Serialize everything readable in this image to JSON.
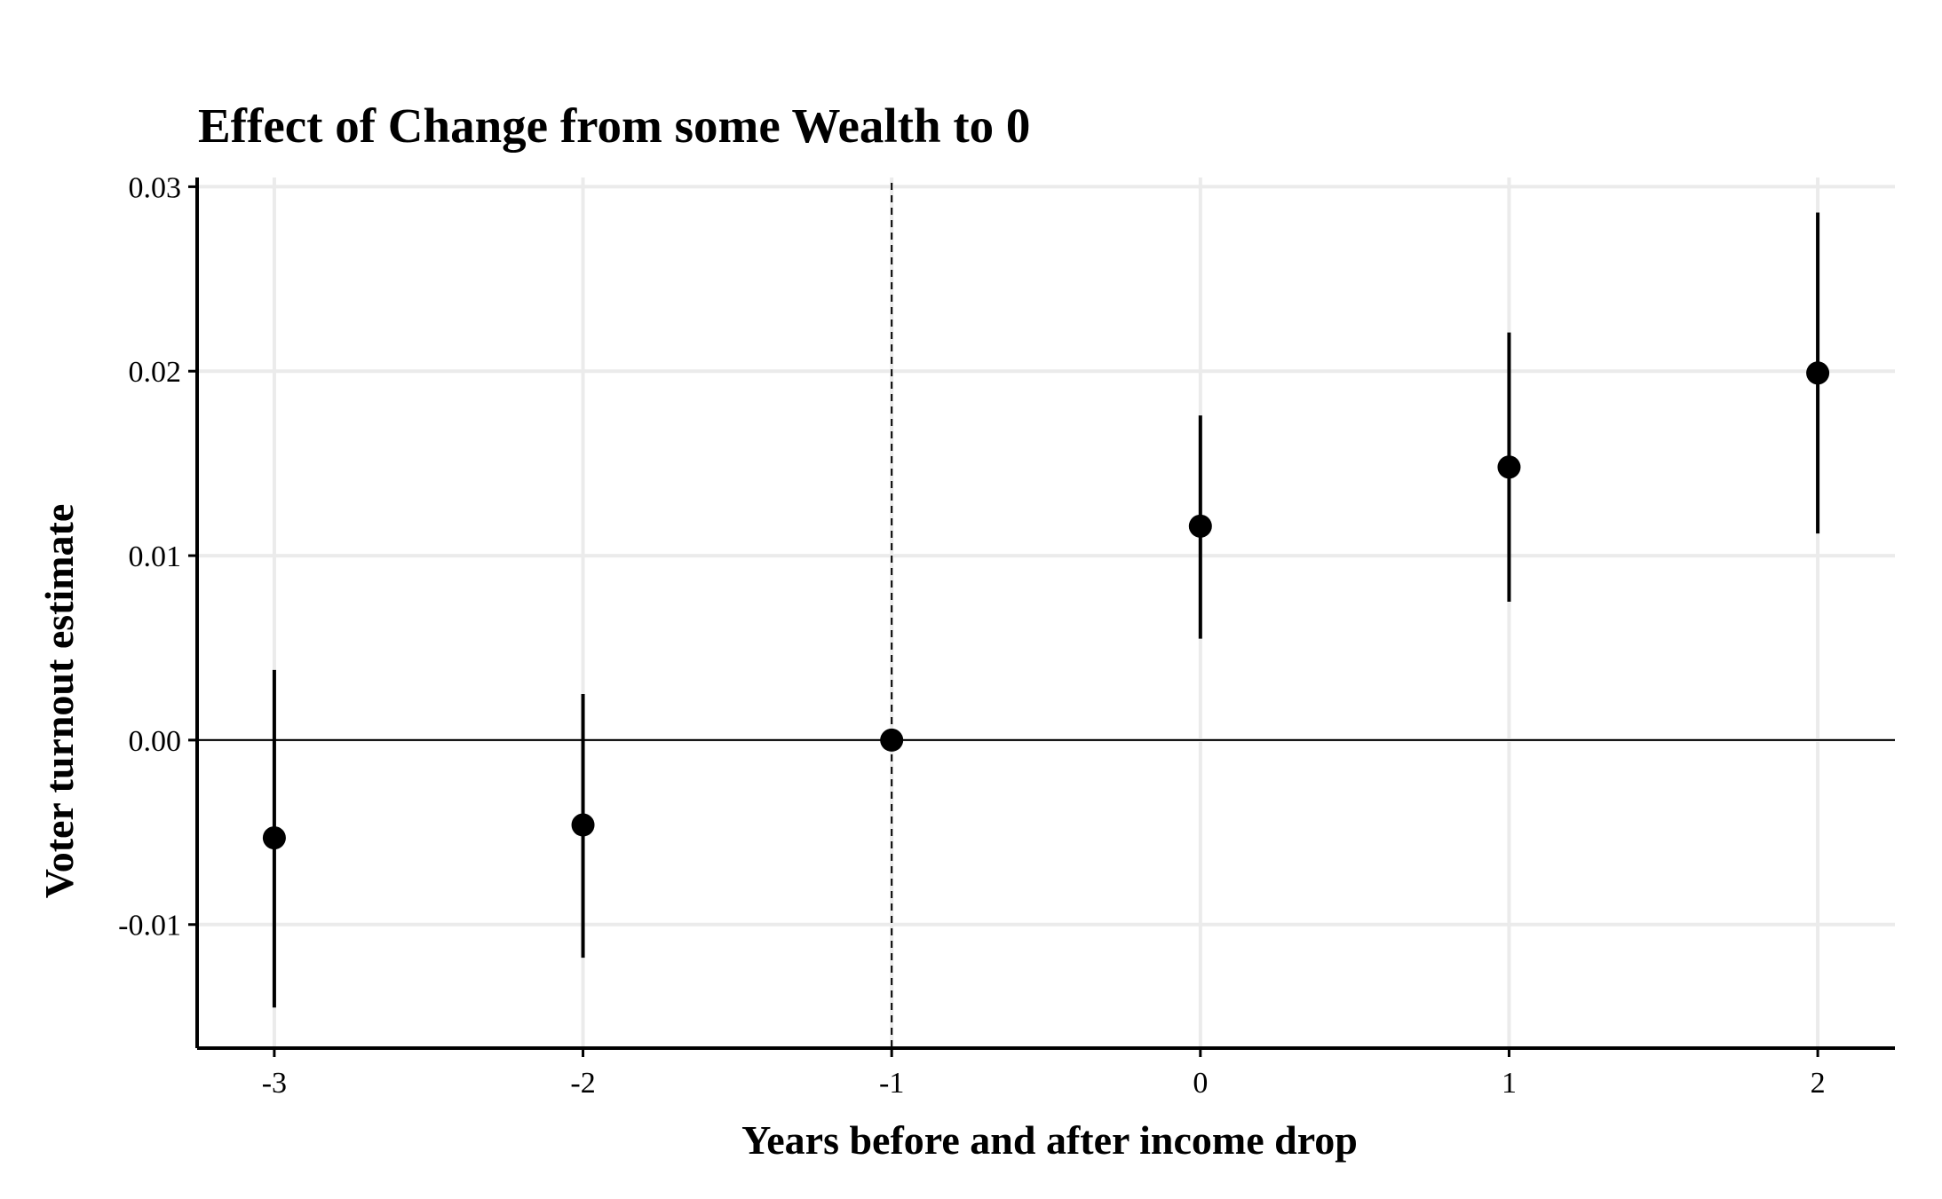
{
  "chart_data": {
    "type": "scatter",
    "title": "Effect of Change from some Wealth to 0",
    "xlabel": "Years before and after income drop",
    "ylabel": "Voter turnout estimate",
    "x": [
      -3,
      -2,
      -1,
      0,
      1,
      2
    ],
    "x_tick_labels": [
      "-3",
      "-2",
      "-1",
      "0",
      "1",
      "2"
    ],
    "y_tick_values": [
      -0.01,
      0,
      0.01,
      0.02,
      0.03
    ],
    "y_tick_labels": [
      "-0.01",
      "0.00",
      "0.01",
      "0.02",
      "0.03"
    ],
    "xlim": [
      -3.25,
      2.25
    ],
    "ylim": [
      -0.0167,
      0.0305
    ],
    "series": [
      {
        "values": [
          -0.0053,
          -0.0046,
          0.0,
          0.0116,
          0.0148,
          0.0199
        ],
        "ci_lower": [
          -0.0145,
          -0.0118,
          0.0,
          0.0055,
          0.0075,
          0.0112
        ],
        "ci_upper": [
          0.0038,
          0.0025,
          0.0,
          0.0176,
          0.0221,
          0.0286
        ]
      }
    ],
    "reference_lines": {
      "horizontal_y": 0,
      "vertical_dashed_x": -1
    },
    "grid": true,
    "legend": "none",
    "colors": {
      "points": "#000000",
      "grid": "#ebebeb",
      "axis": "#000000"
    }
  }
}
